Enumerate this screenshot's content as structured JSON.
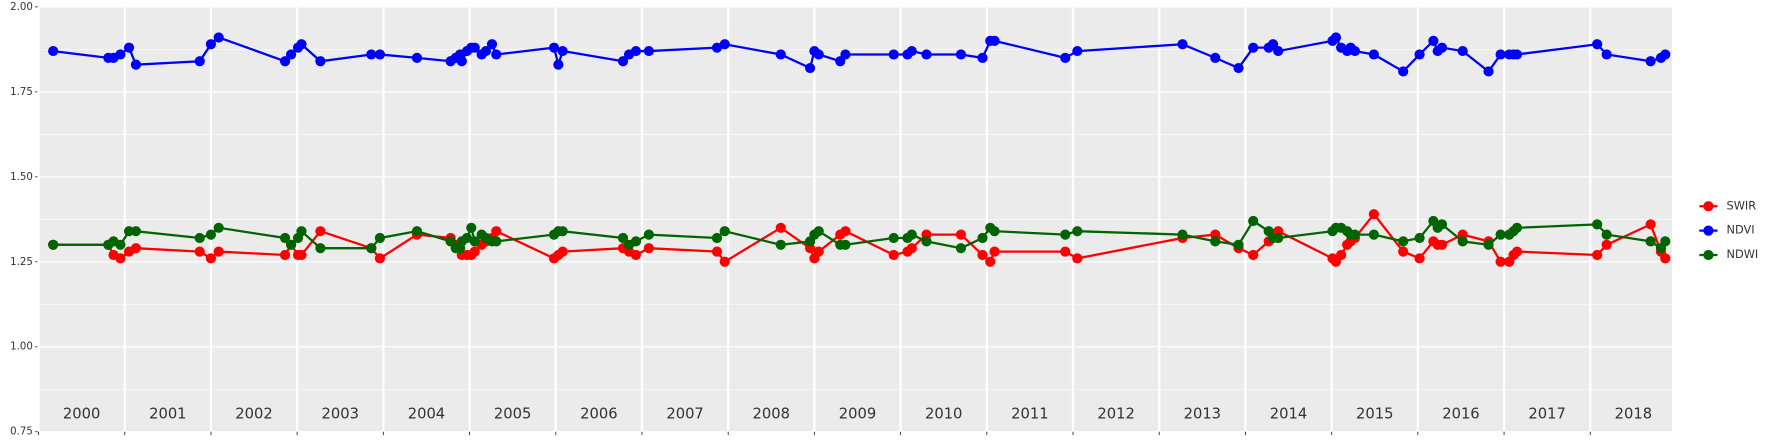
{
  "chart_data": {
    "type": "line",
    "x": [
      2000.17,
      2000.81,
      2000.87,
      2000.95,
      2001.05,
      2001.13,
      2001.87,
      2002,
      2002.09,
      2002.86,
      2002.93,
      2003.01,
      2003.05,
      2003.27,
      2003.86,
      2003.96,
      2004.39,
      2004.78,
      2004.84,
      2004.89,
      2004.91,
      2004.97,
      2005.02,
      2005.06,
      2005.14,
      2005.19,
      2005.26,
      2005.31,
      2005.98,
      2006.03,
      2006.08,
      2006.78,
      2006.85,
      2006.93,
      2007.08,
      2007.87,
      2007.96,
      2008.61,
      2008.95,
      2009,
      2009.05,
      2009.3,
      2009.36,
      2009.92,
      2010.08,
      2010.13,
      2010.3,
      2010.7,
      2010.95,
      2011.04,
      2011.09,
      2011.91,
      2012.05,
      2013.27,
      2013.65,
      2013.92,
      2014.09,
      2014.27,
      2014.32,
      2014.38,
      2015.01,
      2015.05,
      2015.11,
      2015.18,
      2015.22,
      2015.27,
      2015.49,
      2015.83,
      2016.02,
      2016.18,
      2016.23,
      2016.28,
      2016.52,
      2016.82,
      2016.96,
      2017.06,
      2017.11,
      2017.15,
      2018.08,
      2018.19,
      2018.7,
      2018.82,
      2018.87
    ],
    "series": [
      {
        "name": "SWIR",
        "color": "#ff0000",
        "values": [
          1.3,
          1.3,
          1.27,
          1.26,
          1.28,
          1.29,
          1.28,
          1.26,
          1.28,
          1.27,
          1.3,
          1.27,
          1.27,
          1.34,
          1.29,
          1.26,
          1.33,
          1.32,
          1.3,
          1.29,
          1.27,
          1.27,
          1.27,
          1.28,
          1.3,
          1.31,
          1.32,
          1.34,
          1.26,
          1.27,
          1.28,
          1.29,
          1.28,
          1.27,
          1.29,
          1.28,
          1.25,
          1.35,
          1.29,
          1.26,
          1.28,
          1.33,
          1.34,
          1.27,
          1.28,
          1.29,
          1.33,
          1.33,
          1.27,
          1.25,
          1.28,
          1.28,
          1.26,
          1.32,
          1.33,
          1.29,
          1.27,
          1.31,
          1.33,
          1.34,
          1.26,
          1.25,
          1.27,
          1.3,
          1.31,
          1.32,
          1.39,
          1.28,
          1.26,
          1.31,
          1.3,
          1.3,
          1.33,
          1.31,
          1.25,
          1.25,
          1.27,
          1.28,
          1.27,
          1.3,
          1.36,
          1.28,
          1.26
        ]
      },
      {
        "name": "NDVI",
        "color": "#0000ff",
        "values": [
          1.87,
          1.85,
          1.85,
          1.86,
          1.88,
          1.83,
          1.84,
          1.89,
          1.91,
          1.84,
          1.86,
          1.88,
          1.89,
          1.84,
          1.86,
          1.86,
          1.85,
          1.84,
          1.85,
          1.86,
          1.84,
          1.87,
          1.88,
          1.88,
          1.86,
          1.87,
          1.89,
          1.86,
          1.88,
          1.83,
          1.87,
          1.84,
          1.86,
          1.87,
          1.87,
          1.88,
          1.89,
          1.86,
          1.82,
          1.87,
          1.86,
          1.84,
          1.86,
          1.86,
          1.86,
          1.87,
          1.86,
          1.86,
          1.85,
          1.9,
          1.9,
          1.85,
          1.87,
          1.89,
          1.85,
          1.82,
          1.88,
          1.88,
          1.89,
          1.87,
          1.9,
          1.91,
          1.88,
          1.87,
          1.88,
          1.87,
          1.86,
          1.81,
          1.86,
          1.9,
          1.87,
          1.88,
          1.87,
          1.81,
          1.86,
          1.86,
          1.86,
          1.86,
          1.89,
          1.86,
          1.84,
          1.85,
          1.86
        ]
      },
      {
        "name": "NDWI",
        "color": "#006400",
        "values": [
          1.3,
          1.3,
          1.31,
          1.3,
          1.34,
          1.34,
          1.32,
          1.33,
          1.35,
          1.32,
          1.3,
          1.32,
          1.34,
          1.29,
          1.29,
          1.32,
          1.34,
          1.31,
          1.29,
          1.29,
          1.31,
          1.32,
          1.35,
          1.31,
          1.33,
          1.32,
          1.31,
          1.31,
          1.33,
          1.34,
          1.34,
          1.32,
          1.3,
          1.31,
          1.33,
          1.32,
          1.34,
          1.3,
          1.31,
          1.33,
          1.34,
          1.3,
          1.3,
          1.32,
          1.32,
          1.33,
          1.31,
          1.29,
          1.32,
          1.35,
          1.34,
          1.33,
          1.34,
          1.33,
          1.31,
          1.3,
          1.37,
          1.34,
          1.32,
          1.32,
          1.34,
          1.35,
          1.35,
          1.34,
          1.33,
          1.33,
          1.33,
          1.31,
          1.32,
          1.37,
          1.35,
          1.36,
          1.31,
          1.3,
          1.33,
          1.33,
          1.34,
          1.35,
          1.36,
          1.33,
          1.31,
          1.29,
          1.31
        ]
      }
    ],
    "xlim": [
      2000,
      2018.95
    ],
    "xticks": [
      2000,
      2001,
      2002,
      2003,
      2004,
      2005,
      2006,
      2007,
      2008,
      2009,
      2010,
      2011,
      2012,
      2013,
      2014,
      2015,
      2016,
      2017,
      2018
    ],
    "ylim": [
      0.75,
      2.0
    ],
    "yticks": [
      {
        "value": 0.75,
        "label": "0.75"
      },
      {
        "value": 1.0,
        "label": "1.00"
      },
      {
        "value": 1.25,
        "label": "1.25"
      },
      {
        "value": 1.5,
        "label": "1.50"
      },
      {
        "value": 1.75,
        "label": "1.75"
      },
      {
        "value": 2.0,
        "label": "2.00"
      }
    ],
    "grid": true,
    "legend": "right"
  }
}
